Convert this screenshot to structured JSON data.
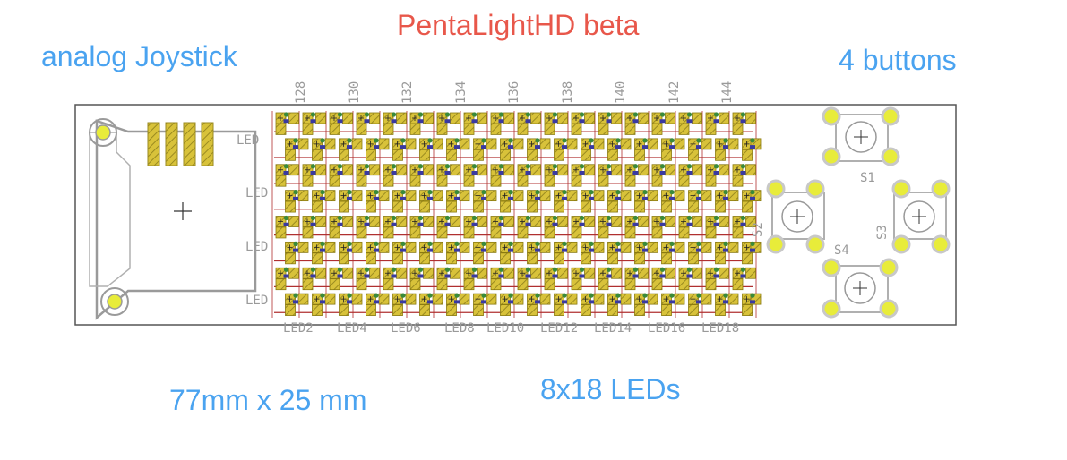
{
  "annotations": {
    "title": "PentaLightHD beta",
    "joystick": "analog Joystick",
    "buttons": "4 buttons",
    "dimensions": "77mm x 25 mm",
    "leds": "8x18 LEDs"
  },
  "board": {
    "top_labels": [
      "128",
      "130",
      "132",
      "134",
      "136",
      "138",
      "140",
      "142",
      "144"
    ],
    "bottom_labels": [
      "LED2",
      "LED4",
      "LED6",
      "LED8",
      "LED10",
      "LED12",
      "LED14",
      "LED16",
      "LED18"
    ],
    "side_labels": [
      "LED",
      "LED",
      "LED",
      "LED"
    ],
    "button_labels": [
      "S1",
      "S2",
      "S3",
      "S4"
    ]
  },
  "colors": {
    "pad": "#d8c23a",
    "pad_hatch": "#9a8a20",
    "pin": "#e8ec3a",
    "silkscreen": "#9a9a9a",
    "trace": "#b03030",
    "via": "#3a8a3a",
    "chip": "#3a3aa0",
    "title": "#e8574a",
    "annotation": "#4aa3f0"
  },
  "led_matrix": {
    "rows": 8,
    "columns": 18
  }
}
